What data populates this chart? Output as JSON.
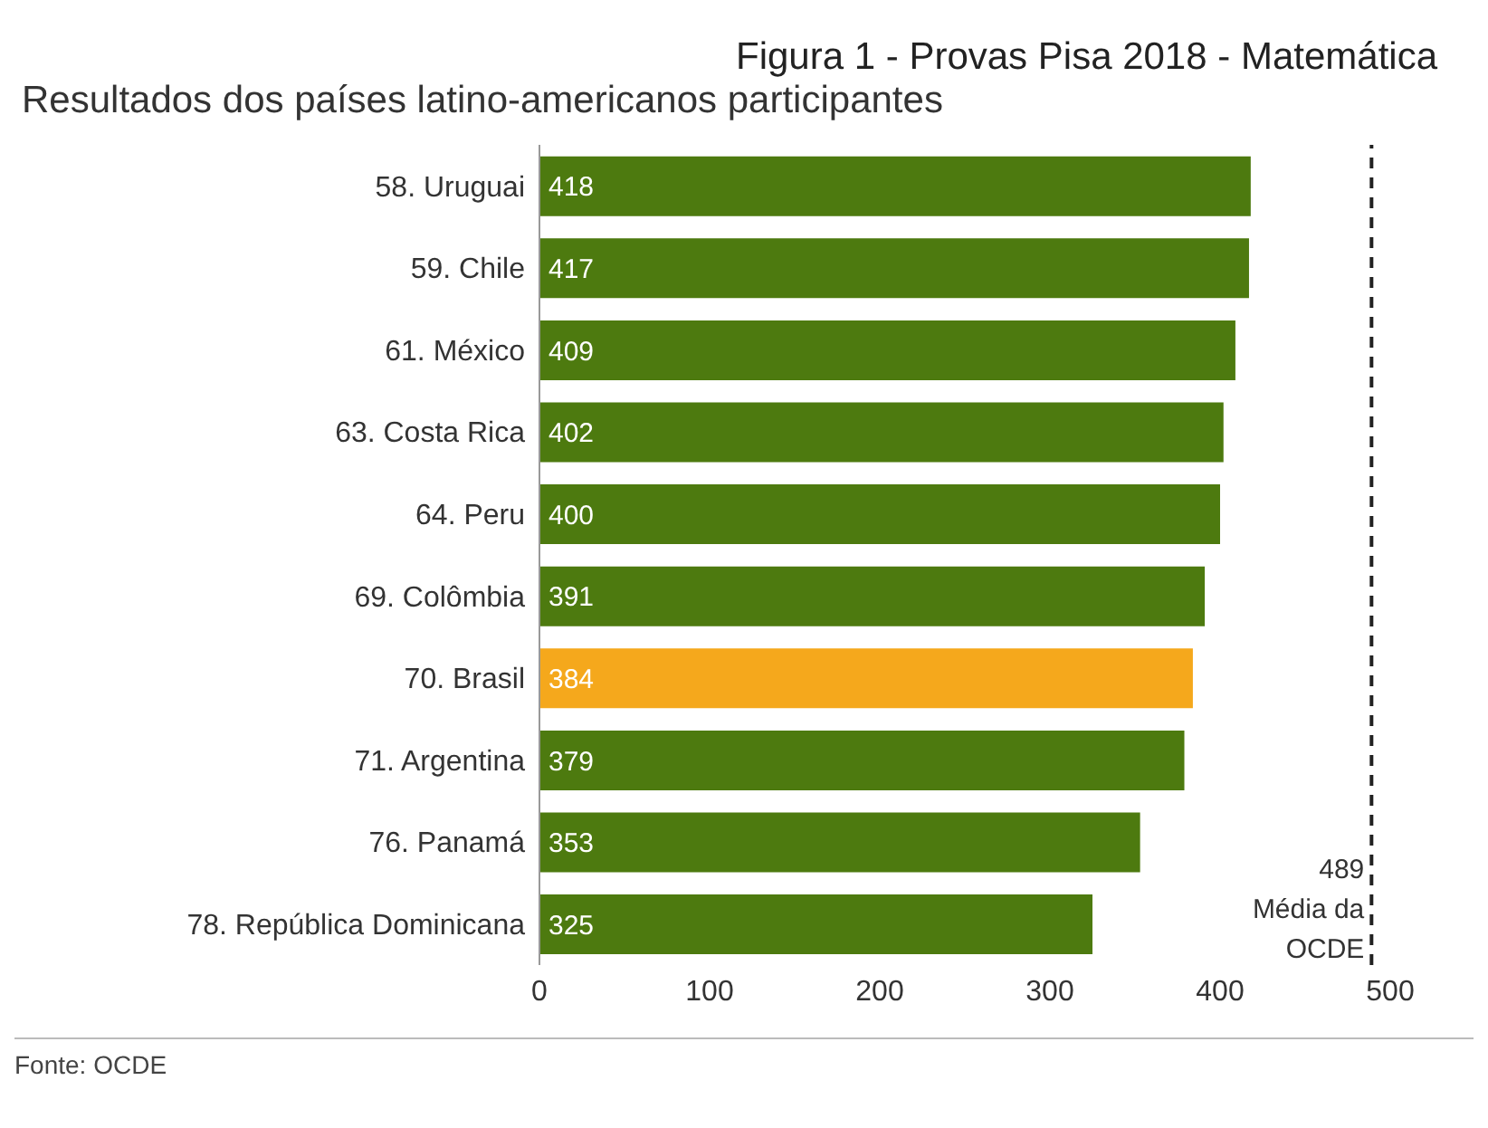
{
  "chart_data": {
    "type": "bar",
    "orientation": "horizontal",
    "title": "Figura 1 - Provas Pisa 2018 - Matemática",
    "subtitle": "Resultados dos países latino-americanos participantes",
    "categories": [
      "58. Uruguai",
      "59. Chile",
      "61. México",
      "63. Costa Rica",
      "64. Peru",
      "69. Colômbia",
      "70. Brasil",
      "71. Argentina",
      "76. Panamá",
      "78. República Dominicana"
    ],
    "values": [
      418,
      417,
      409,
      402,
      400,
      391,
      384,
      379,
      353,
      325
    ],
    "colors": [
      "#4d7a0f",
      "#4d7a0f",
      "#4d7a0f",
      "#4d7a0f",
      "#4d7a0f",
      "#4d7a0f",
      "#f5a81c",
      "#4d7a0f",
      "#4d7a0f",
      "#4d7a0f"
    ],
    "xlim": [
      0,
      500
    ],
    "xticks": [
      0,
      100,
      200,
      300,
      400,
      500
    ],
    "data_labels": true,
    "ref_lines": [
      {
        "axis": "x",
        "value": 489,
        "label": "489 Média da OCDE",
        "color": "#222222",
        "line_style": "dashed"
      }
    ],
    "annotations": [
      "Fonte: OCDE"
    ]
  }
}
